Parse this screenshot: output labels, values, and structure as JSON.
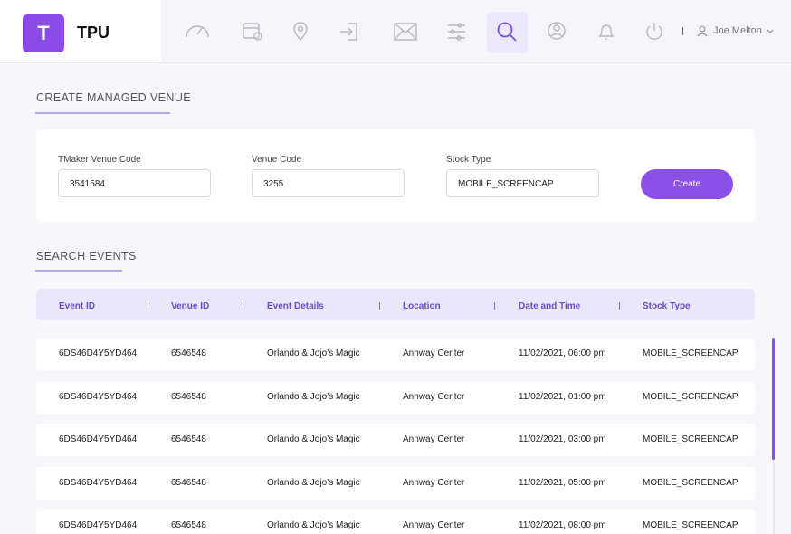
{
  "header": {
    "logo_mark": "T",
    "logo_text": "TPU",
    "user_name": "Joe Melton"
  },
  "create_section": {
    "title": "CREATE MANAGED VENUE",
    "fields": [
      {
        "label": "TMaker Venue Code",
        "value": "3541584"
      },
      {
        "label": "Venue Code",
        "value": "3255"
      },
      {
        "label": "Stock Type",
        "value": "MOBILE_SCREENCAP"
      }
    ],
    "button": "Create"
  },
  "search_section": {
    "title": "SEARCH EVENTS",
    "table": {
      "columns": [
        "Event ID",
        "Venue ID",
        "Event Details",
        "Location",
        "Date and Time",
        "Stock Type"
      ],
      "rows": [
        [
          "6DS46D4Y5YD464",
          "6546548",
          "Orlando & Jojo’s Magic",
          "Annway Center",
          "11/02/2021, 06:00 pm",
          "MOBILE_SCREENCAP"
        ],
        [
          "6DS46D4Y5YD464",
          "6546548",
          "Orlando & Jojo’s Magic",
          "Annway Center",
          "11/02/2021, 01:00 pm",
          "MOBILE_SCREENCAP"
        ],
        [
          "6DS46D4Y5YD464",
          "6546548",
          "Orlando & Jojo’s Magic",
          "Annway Center",
          "11/02/2021, 03:00 pm",
          "MOBILE_SCREENCAP"
        ],
        [
          "6DS46D4Y5YD464",
          "6546548",
          "Orlando & Jojo’s Magic",
          "Annway Center",
          "11/02/2021, 05:00 pm",
          "MOBILE_SCREENCAP"
        ],
        [
          "6DS46D4Y5YD464",
          "6546548",
          "Orlando & Jojo’s Magic",
          "Annway Center",
          "11/02/2021, 08:00 pm",
          "MOBILE_SCREENCAP"
        ]
      ]
    }
  }
}
